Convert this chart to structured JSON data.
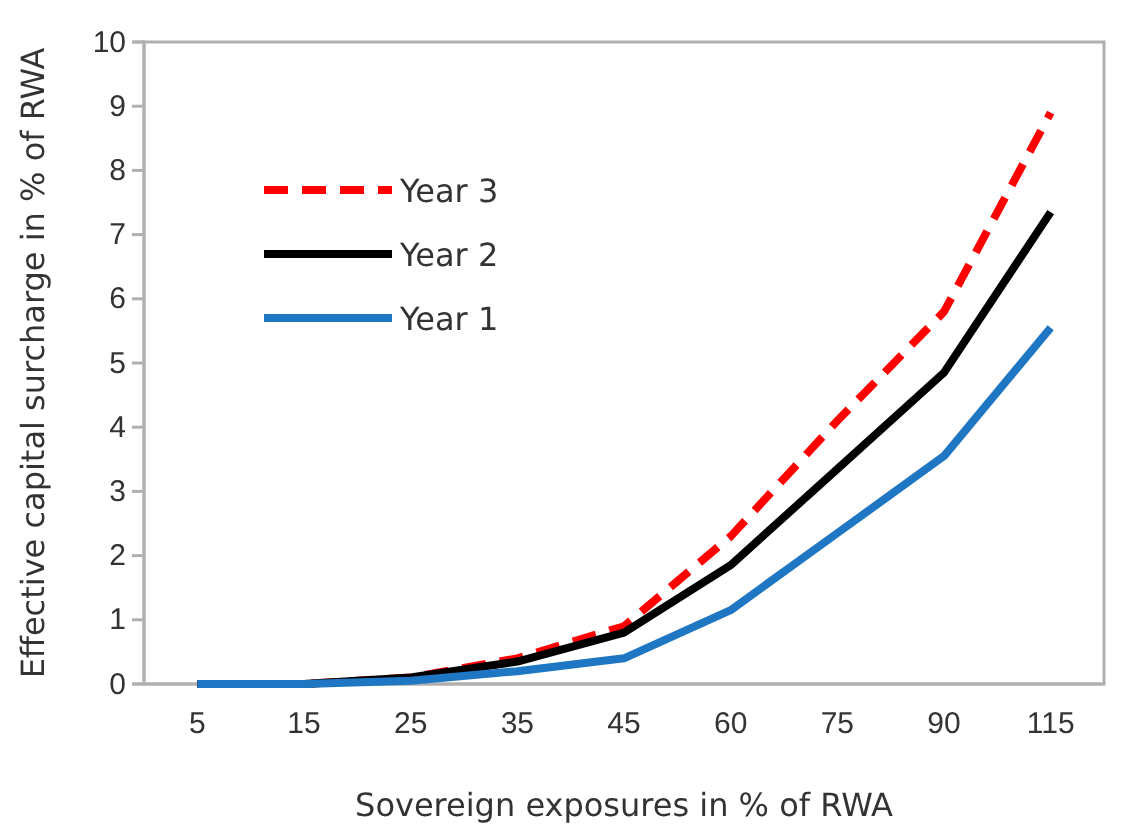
{
  "chart_data": {
    "type": "line",
    "xlabel": "Sovereign exposures in % of RWA",
    "ylabel": "Effective capital surcharge in % of RWA",
    "categories": [
      "5",
      "15",
      "25",
      "35",
      "45",
      "60",
      "75",
      "90",
      "115"
    ],
    "series": [
      {
        "name": "Year 3",
        "color": "#ff0000",
        "line_style": "dashed",
        "values": [
          0,
          0,
          0.1,
          0.4,
          0.9,
          2.3,
          4.1,
          5.8,
          8.9
        ]
      },
      {
        "name": "Year 2",
        "color": "#000000",
        "line_style": "solid",
        "values": [
          0,
          0,
          0.1,
          0.35,
          0.8,
          1.85,
          3.35,
          4.85,
          7.35
        ]
      },
      {
        "name": "Year 1",
        "color": "#1f77c4",
        "line_style": "solid",
        "values": [
          0,
          0,
          0.05,
          0.2,
          0.4,
          1.15,
          2.35,
          3.55,
          5.55
        ]
      }
    ],
    "ylim": [
      0,
      10
    ],
    "yticks": [
      0,
      1,
      2,
      3,
      4,
      5,
      6,
      7,
      8,
      9,
      10
    ],
    "grid": false,
    "legend": "top left",
    "marker": "none"
  }
}
